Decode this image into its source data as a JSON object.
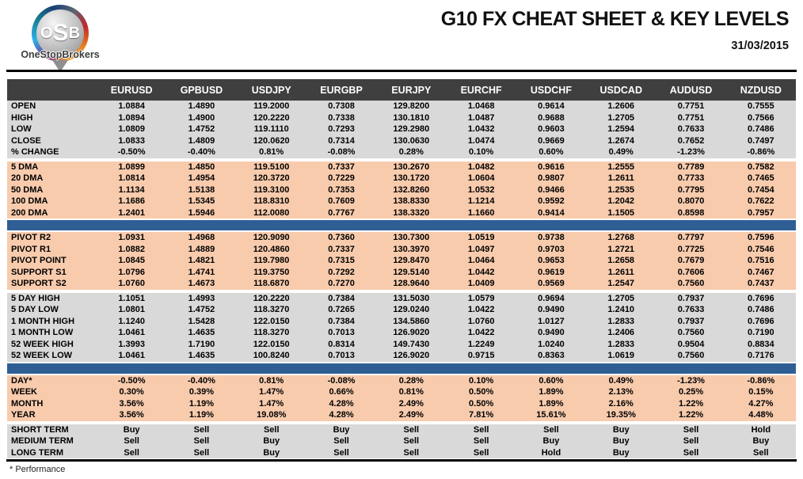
{
  "header": {
    "title": "G10 FX CHEAT SHEET & KEY LEVELS",
    "date": "31/03/2015",
    "brand": "OneStopBrokers",
    "logo": {
      "o": "O",
      "s": "S",
      "b": "B"
    }
  },
  "colors": {
    "header_bg": "#3F3F3F",
    "section_gray": "#D9D9D9",
    "section_peach": "#F8CBAD",
    "divider_bar_blue": "#2F5E94",
    "buy_green": "#00B050",
    "sell_red": "#FF0000",
    "hold_blue": "#2E5C94",
    "pivot_r_green": "#00B050",
    "pivot_point_navy": "#17375E",
    "support_red": "#FF0000"
  },
  "table": {
    "columns": [
      "EURUSD",
      "GPBUSD",
      "USDJPY",
      "EURGBP",
      "EURJPY",
      "EURCHF",
      "USDCHF",
      "USDCAD",
      "AUDUSD",
      "NZDUSD"
    ],
    "sections": [
      {
        "id": "ohlc",
        "bg": "gray",
        "after": "gap",
        "rows": [
          {
            "label": "OPEN",
            "values": [
              "1.0884",
              "1.4890",
              "119.2000",
              "0.7308",
              "129.8200",
              "1.0468",
              "0.9614",
              "1.2606",
              "0.7751",
              "0.7555"
            ]
          },
          {
            "label": "HIGH",
            "values": [
              "1.0894",
              "1.4900",
              "120.2220",
              "0.7338",
              "130.1810",
              "1.0487",
              "0.9688",
              "1.2705",
              "0.7751",
              "0.7566"
            ]
          },
          {
            "label": "LOW",
            "values": [
              "1.0809",
              "1.4752",
              "119.1110",
              "0.7293",
              "129.2980",
              "1.0432",
              "0.9603",
              "1.2594",
              "0.7633",
              "0.7486"
            ]
          },
          {
            "label": "CLOSE",
            "values": [
              "1.0833",
              "1.4809",
              "120.0620",
              "0.7314",
              "130.0630",
              "1.0474",
              "0.9669",
              "1.2674",
              "0.7652",
              "0.7497"
            ]
          },
          {
            "label": "% CHANGE",
            "values": [
              "-0.50%",
              "-0.40%",
              "0.81%",
              "-0.08%",
              "0.28%",
              "0.10%",
              "0.60%",
              "0.49%",
              "-1.23%",
              "-0.86%"
            ]
          }
        ]
      },
      {
        "id": "dma",
        "bg": "peach",
        "after": "bar",
        "rows": [
          {
            "label": "5 DMA",
            "values": [
              "1.0899",
              "1.4850",
              "119.5100",
              "0.7337",
              "130.2670",
              "1.0482",
              "0.9616",
              "1.2555",
              "0.7789",
              "0.7582"
            ]
          },
          {
            "label": "20 DMA",
            "values": [
              "1.0814",
              "1.4954",
              "120.3720",
              "0.7229",
              "130.1720",
              "1.0604",
              "0.9807",
              "1.2611",
              "0.7733",
              "0.7465"
            ]
          },
          {
            "label": "50 DMA",
            "values": [
              "1.1134",
              "1.5138",
              "119.3100",
              "0.7353",
              "132.8260",
              "1.0532",
              "0.9466",
              "1.2535",
              "0.7795",
              "0.7454"
            ]
          },
          {
            "label": "100 DMA",
            "values": [
              "1.1686",
              "1.5345",
              "118.8310",
              "0.7609",
              "138.8330",
              "1.1214",
              "0.9592",
              "1.2042",
              "0.8070",
              "0.7622"
            ]
          },
          {
            "label": "200 DMA",
            "values": [
              "1.2401",
              "1.5946",
              "112.0080",
              "0.7767",
              "138.3320",
              "1.1660",
              "0.9414",
              "1.1505",
              "0.8598",
              "0.7957"
            ]
          }
        ]
      },
      {
        "id": "pivots",
        "bg": "peach",
        "after": "gap",
        "rows": [
          {
            "label": "PIVOT R2",
            "color": "green",
            "values": [
              "1.0931",
              "1.4968",
              "120.9090",
              "0.7360",
              "130.7300",
              "1.0519",
              "0.9738",
              "1.2768",
              "0.7797",
              "0.7596"
            ]
          },
          {
            "label": "PIVOT R1",
            "color": "green",
            "values": [
              "1.0882",
              "1.4889",
              "120.4860",
              "0.7337",
              "130.3970",
              "1.0497",
              "0.9703",
              "1.2721",
              "0.7725",
              "0.7546"
            ]
          },
          {
            "label": "PIVOT POINT",
            "color": "navy",
            "values": [
              "1.0845",
              "1.4821",
              "119.7980",
              "0.7315",
              "129.8470",
              "1.0464",
              "0.9653",
              "1.2658",
              "0.7679",
              "0.7516"
            ]
          },
          {
            "label": "SUPPORT S1",
            "color": "red",
            "values": [
              "1.0796",
              "1.4741",
              "119.3750",
              "0.7292",
              "129.5140",
              "1.0442",
              "0.9619",
              "1.2611",
              "0.7606",
              "0.7467"
            ]
          },
          {
            "label": "SUPPORT S2",
            "color": "red",
            "values": [
              "1.0760",
              "1.4673",
              "118.6870",
              "0.7270",
              "128.9640",
              "1.0409",
              "0.9569",
              "1.2547",
              "0.7560",
              "0.7437"
            ]
          }
        ]
      },
      {
        "id": "ranges",
        "bg": "gray",
        "after": "bar",
        "rows": [
          {
            "label": "5 DAY HIGH",
            "values": [
              "1.1051",
              "1.4993",
              "120.2220",
              "0.7384",
              "131.5030",
              "1.0579",
              "0.9694",
              "1.2705",
              "0.7937",
              "0.7696"
            ]
          },
          {
            "label": "5 DAY LOW",
            "values": [
              "1.0801",
              "1.4752",
              "118.3270",
              "0.7265",
              "129.0240",
              "1.0422",
              "0.9490",
              "1.2410",
              "0.7633",
              "0.7486"
            ]
          },
          {
            "label": "1 MONTH HIGH",
            "values": [
              "1.1240",
              "1.5428",
              "122.0150",
              "0.7384",
              "134.5860",
              "1.0760",
              "1.0127",
              "1.2833",
              "0.7937",
              "0.7696"
            ]
          },
          {
            "label": "1 MONTH LOW",
            "values": [
              "1.0461",
              "1.4635",
              "118.3270",
              "0.7013",
              "126.9020",
              "1.0422",
              "0.9490",
              "1.2406",
              "0.7560",
              "0.7190"
            ]
          },
          {
            "label": "52 WEEK HIGH",
            "values": [
              "1.3993",
              "1.7190",
              "122.0150",
              "0.8314",
              "149.7430",
              "1.2249",
              "1.0240",
              "1.2833",
              "0.9504",
              "0.8834"
            ]
          },
          {
            "label": "52 WEEK LOW",
            "values": [
              "1.0461",
              "1.4635",
              "100.8240",
              "0.7013",
              "126.9020",
              "0.9715",
              "0.8363",
              "1.0619",
              "0.7560",
              "0.7176"
            ]
          }
        ]
      },
      {
        "id": "performance",
        "bg": "peach",
        "after": "gap",
        "rows": [
          {
            "label": "DAY*",
            "values": [
              "-0.50%",
              "-0.40%",
              "0.81%",
              "-0.08%",
              "0.28%",
              "0.10%",
              "0.60%",
              "0.49%",
              "-1.23%",
              "-0.86%"
            ]
          },
          {
            "label": "WEEK",
            "values": [
              "0.30%",
              "0.39%",
              "1.47%",
              "0.66%",
              "0.81%",
              "0.50%",
              "1.89%",
              "2.13%",
              "0.25%",
              "0.15%"
            ]
          },
          {
            "label": "MONTH",
            "values": [
              "3.56%",
              "1.19%",
              "1.47%",
              "4.28%",
              "2.49%",
              "0.50%",
              "1.89%",
              "2.16%",
              "1.22%",
              "4.27%"
            ]
          },
          {
            "label": "YEAR",
            "values": [
              "3.56%",
              "1.19%",
              "19.08%",
              "4.28%",
              "2.49%",
              "7.81%",
              "15.61%",
              "19.35%",
              "1.22%",
              "4.48%"
            ]
          }
        ]
      },
      {
        "id": "signals",
        "bg": "gray",
        "signals": true,
        "after": null,
        "rows": [
          {
            "label": "SHORT TERM",
            "values": [
              "Buy",
              "Sell",
              "Sell",
              "Buy",
              "Sell",
              "Sell",
              "Sell",
              "Buy",
              "Sell",
              "Hold"
            ]
          },
          {
            "label": "MEDIUM TERM",
            "values": [
              "Sell",
              "Sell",
              "Buy",
              "Sell",
              "Sell",
              "Sell",
              "Buy",
              "Buy",
              "Sell",
              "Buy"
            ]
          },
          {
            "label": "LONG TERM",
            "values": [
              "Sell",
              "Sell",
              "Buy",
              "Sell",
              "Sell",
              "Sell",
              "Hold",
              "Buy",
              "Sell",
              "Sell"
            ]
          }
        ]
      }
    ]
  },
  "footer": {
    "note": "* Performance"
  }
}
